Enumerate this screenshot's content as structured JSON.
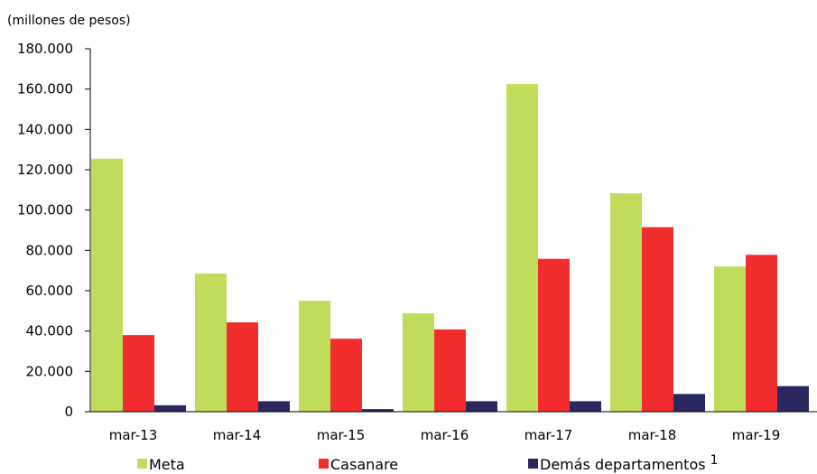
{
  "chart_data": {
    "type": "bar",
    "ylabel": "(millones  de pesos)",
    "categories": [
      "mar-13",
      "mar-14",
      "mar-15",
      "mar-16",
      "mar-17",
      "mar-18",
      "mar-19"
    ],
    "series": [
      {
        "name": "Meta",
        "color": "#bfdc5a",
        "values": [
          125500,
          68500,
          55000,
          48800,
          162500,
          108300,
          72000
        ]
      },
      {
        "name": "Casanare",
        "color": "#f22d2d",
        "values": [
          38000,
          44300,
          36200,
          40800,
          75800,
          91500,
          77800
        ]
      },
      {
        "name": "Demás departamentos",
        "superscript": "1",
        "color": "#2a2860",
        "values": [
          3200,
          5200,
          1300,
          5200,
          5200,
          8800,
          12700
        ]
      }
    ],
    "ylim": [
      0,
      180000
    ],
    "yticks": [
      0,
      20000,
      40000,
      60000,
      80000,
      100000,
      120000,
      140000,
      160000,
      180000
    ],
    "ytick_labels": [
      "0",
      "20.000",
      "40.000",
      "60.000",
      "80.000",
      "100.000",
      "120.000",
      "140.000",
      "160.000",
      "180.000"
    ],
    "grid": false,
    "legend_position": "bottom"
  }
}
